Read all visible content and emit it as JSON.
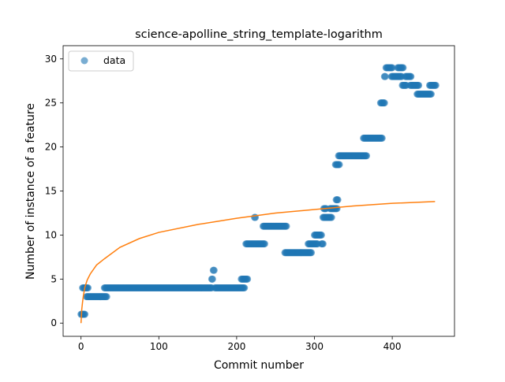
{
  "chart_data": {
    "type": "scatter",
    "title": "science-apolline_string_template-logarithm",
    "xlabel": "Commit number",
    "ylabel": "Number of instance of a feature",
    "xlim": [
      -23,
      480
    ],
    "ylim": [
      -1.5,
      31.5
    ],
    "xticks": [
      0,
      100,
      200,
      300,
      400
    ],
    "yticks": [
      0,
      5,
      10,
      15,
      20,
      25,
      30
    ],
    "grid": false,
    "legend": {
      "position": "top-left",
      "entries": [
        "data"
      ]
    },
    "colors": {
      "scatter": "#1f77b4",
      "fit": "#ff7f0e"
    },
    "series": [
      {
        "name": "data",
        "kind": "scatter",
        "segments": [
          {
            "x_start": 0,
            "x_end": 5,
            "y": 1
          },
          {
            "x_start": 2,
            "x_end": 9,
            "y": 4
          },
          {
            "x_start": 7,
            "x_end": 33,
            "y": 3
          },
          {
            "x_start": 30,
            "x_end": 168,
            "y": 4
          },
          {
            "x_start": 168,
            "x_end": 169,
            "y": 5
          },
          {
            "x_start": 170,
            "x_end": 171,
            "y": 6
          },
          {
            "x_start": 172,
            "x_end": 210,
            "y": 4
          },
          {
            "x_start": 206,
            "x_end": 214,
            "y": 5
          },
          {
            "x_start": 212,
            "x_end": 236,
            "y": 9
          },
          {
            "x_start": 223,
            "x_end": 224,
            "y": 12
          },
          {
            "x_start": 234,
            "x_end": 264,
            "y": 11
          },
          {
            "x_start": 262,
            "x_end": 296,
            "y": 8
          },
          {
            "x_start": 292,
            "x_end": 304,
            "y": 9
          },
          {
            "x_start": 300,
            "x_end": 309,
            "y": 10
          },
          {
            "x_start": 309,
            "x_end": 311,
            "y": 9
          },
          {
            "x_start": 311,
            "x_end": 322,
            "y": 12
          },
          {
            "x_start": 312,
            "x_end": 315,
            "y": 13
          },
          {
            "x_start": 320,
            "x_end": 329,
            "y": 13
          },
          {
            "x_start": 328,
            "x_end": 330,
            "y": 14
          },
          {
            "x_start": 327,
            "x_end": 332,
            "y": 18
          },
          {
            "x_start": 331,
            "x_end": 367,
            "y": 19
          },
          {
            "x_start": 363,
            "x_end": 387,
            "y": 21
          },
          {
            "x_start": 385,
            "x_end": 390,
            "y": 25
          },
          {
            "x_start": 390,
            "x_end": 391,
            "y": 28
          },
          {
            "x_start": 392,
            "x_end": 400,
            "y": 29
          },
          {
            "x_start": 399,
            "x_end": 412,
            "y": 28
          },
          {
            "x_start": 407,
            "x_end": 414,
            "y": 29
          },
          {
            "x_start": 413,
            "x_end": 418,
            "y": 27
          },
          {
            "x_start": 417,
            "x_end": 424,
            "y": 28
          },
          {
            "x_start": 423,
            "x_end": 434,
            "y": 27
          },
          {
            "x_start": 432,
            "x_end": 450,
            "y": 26
          },
          {
            "x_start": 448,
            "x_end": 456,
            "y": 27
          }
        ]
      },
      {
        "name": "",
        "kind": "line",
        "model": "logarithmic",
        "points": [
          [
            0,
            0.0
          ],
          [
            1,
            1.6
          ],
          [
            2,
            2.4
          ],
          [
            3,
            3.1
          ],
          [
            5,
            4.1
          ],
          [
            8,
            4.9
          ],
          [
            12,
            5.6
          ],
          [
            20,
            6.6
          ],
          [
            30,
            7.3
          ],
          [
            50,
            8.6
          ],
          [
            75,
            9.6
          ],
          [
            100,
            10.3
          ],
          [
            150,
            11.2
          ],
          [
            200,
            11.9
          ],
          [
            250,
            12.5
          ],
          [
            300,
            12.9
          ],
          [
            350,
            13.3
          ],
          [
            400,
            13.6
          ],
          [
            455,
            13.8
          ]
        ]
      }
    ]
  }
}
